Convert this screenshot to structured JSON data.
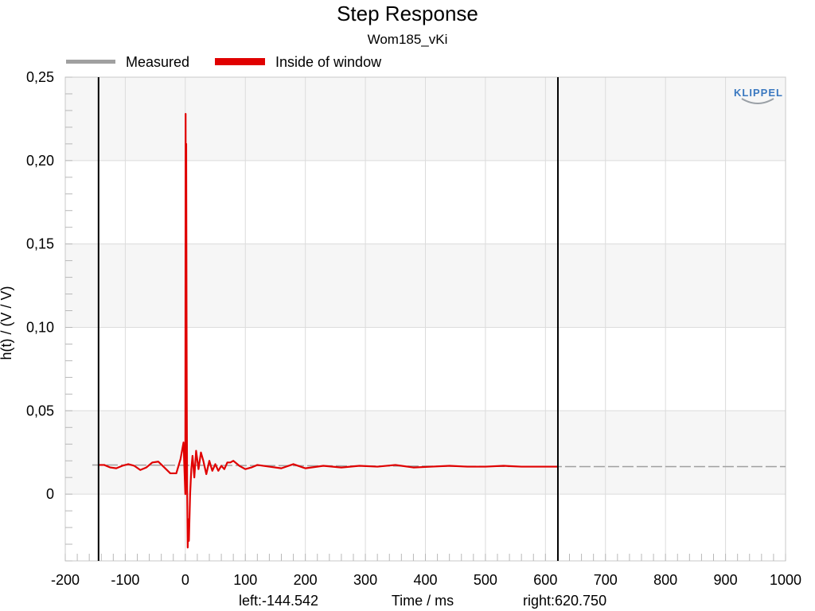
{
  "chart_data": {
    "type": "line",
    "title": "Step Response",
    "subtitle": "Wom185_vKi",
    "xlabel": "Time / ms",
    "ylabel": "h(t) / (V / V)",
    "xlim": [
      -200,
      1000
    ],
    "ylim": [
      -0.04,
      0.25
    ],
    "xticks": [
      -200,
      -100,
      0,
      100,
      200,
      300,
      400,
      500,
      600,
      700,
      800,
      900,
      1000
    ],
    "xtick_labels": [
      "-200",
      "-100",
      "0",
      "100",
      "200",
      "300",
      "400",
      "500",
      "600",
      "700",
      "800",
      "900",
      "1000"
    ],
    "yticks": [
      0,
      0.05,
      0.1,
      0.15,
      0.2,
      0.25
    ],
    "ytick_labels": [
      "0",
      "0,05",
      "0,10",
      "0,15",
      "0,20",
      "0,25"
    ],
    "grid": true,
    "legend_position": "top-left, above plot",
    "window_markers": [
      -144.542,
      620.75
    ],
    "left_label": "left:-144.542",
    "right_label": "right:620.750",
    "logo_text": "KLIPPEL",
    "series": [
      {
        "name": "Measured",
        "color": "#a0a0a0",
        "x": [
          -155,
          -144.5,
          620.75,
          700,
          800,
          900,
          1000
        ],
        "y": [
          0.0175,
          0.0175,
          0.0165,
          0.0165,
          0.0165,
          0.0165,
          0.0165
        ]
      },
      {
        "name": "Inside of window",
        "color": "#e00000",
        "x": [
          -144.5,
          -135,
          -125,
          -115,
          -105,
          -95,
          -85,
          -75,
          -65,
          -55,
          -45,
          -35,
          -25,
          -15,
          -8,
          -3,
          0,
          0.5,
          1,
          1.5,
          2,
          2.5,
          3,
          4,
          5,
          6,
          8,
          10,
          12,
          15,
          18,
          22,
          26,
          30,
          35,
          40,
          45,
          50,
          55,
          60,
          65,
          70,
          75,
          80,
          90,
          100,
          110,
          120,
          140,
          160,
          180,
          200,
          230,
          260,
          290,
          320,
          350,
          380,
          410,
          440,
          470,
          500,
          530,
          560,
          590,
          620.75
        ],
        "y": [
          0.0175,
          0.0175,
          0.016,
          0.0155,
          0.017,
          0.018,
          0.017,
          0.0145,
          0.016,
          0.019,
          0.0195,
          0.016,
          0.0125,
          0.0125,
          0.021,
          0.031,
          0.0,
          0.228,
          0.06,
          0.21,
          0.118,
          0.05,
          0.005,
          -0.032,
          -0.015,
          -0.028,
          0.0,
          0.015,
          0.023,
          0.01,
          0.026,
          0.015,
          0.025,
          0.02,
          0.012,
          0.02,
          0.014,
          0.018,
          0.014,
          0.017,
          0.015,
          0.019,
          0.019,
          0.02,
          0.017,
          0.015,
          0.016,
          0.0175,
          0.0165,
          0.0155,
          0.018,
          0.0155,
          0.017,
          0.016,
          0.017,
          0.0165,
          0.0175,
          0.016,
          0.0165,
          0.017,
          0.0165,
          0.0165,
          0.017,
          0.0165,
          0.0165,
          0.0165
        ]
      }
    ]
  }
}
